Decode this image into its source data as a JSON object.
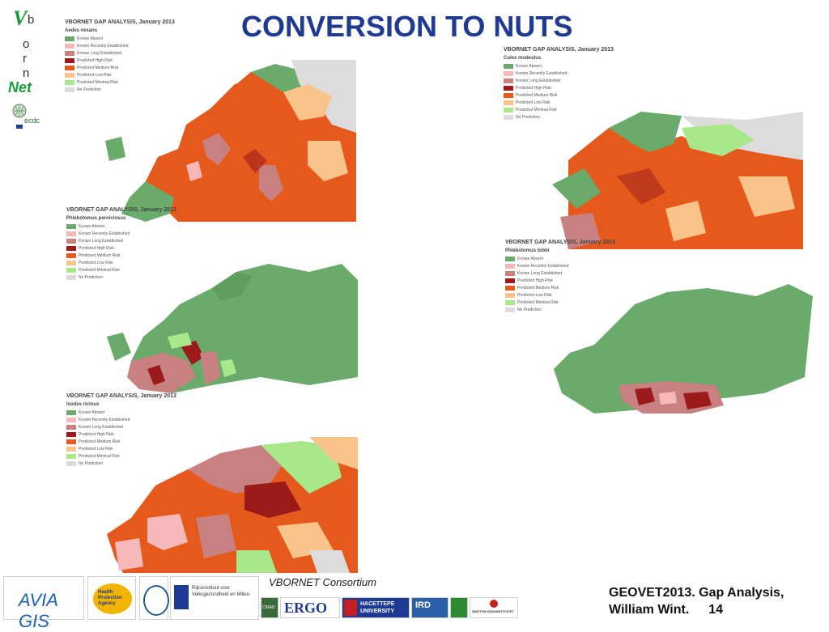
{
  "brand": {
    "v": "V",
    "letters": [
      "b",
      "o",
      "r",
      "n"
    ],
    "net": "Net",
    "ecdc_icon": "ecdc-logo-icon"
  },
  "title": "CONVERSION TO NUTS",
  "legend_colors": {
    "Known Absent": "#6aaa6a",
    "Known Recently Established": "#f6b8b8",
    "Known Long Established": "#c98080",
    "Predicted High Risk": "#9b1b1b",
    "Predicted Medium Risk": "#e55a1c",
    "Predicted Low Risk": "#f9c48a",
    "Predicted Minimal Risk": "#a8e88a",
    "No Prediction": "#dcdcdc"
  },
  "maps": [
    {
      "id": "aedes",
      "title": "VBORNET GAP ANALYSIS, January 2013",
      "species": "Aedes vexans",
      "legend": [
        "Known Absent",
        "Known Recently Established",
        "Known Long Established",
        "Predicted High Risk",
        "Predicted Medium Risk",
        "Predicted Low Risk",
        "Predicted Minimal Risk",
        "No Prediction"
      ]
    },
    {
      "id": "culex",
      "title": "VBORNET GAP ANALYSIS, January 2013",
      "species": "Culex modestus",
      "legend": [
        "Known Absent",
        "Known Recently Established",
        "Known Long Established",
        "Predicted High Risk",
        "Predicted Medium Risk",
        "Predicted Low Risk",
        "Predicted Minimal Risk",
        "No Prediction"
      ]
    },
    {
      "id": "pperniciosus",
      "title": "VBORNET GAP ANALYSIS, January 2013",
      "species": "Phlebotomus perniciosus",
      "legend": [
        "Known Absent",
        "Known Recently Established",
        "Known Long Established",
        "Predicted High Risk",
        "Predicted Medium Risk",
        "Predicted Low Risk",
        "Predicted Minimal Risk",
        "No Prediction"
      ]
    },
    {
      "id": "ptobbi",
      "title": "VBORNET GAP ANALYSIS, January 2013",
      "species": "Phlebotomus tobbi",
      "legend": [
        "Known Absent",
        "Known Recently Established",
        "Known Long Established",
        "Predicted High Risk",
        "Predicted Medium Risk",
        "Predicted Low Risk",
        "Predicted Minimal Risk",
        "No Prediction"
      ]
    },
    {
      "id": "ixodes",
      "title": "VBORNET GAP ANALYSIS, January 2013",
      "species": "Ixodes ricinus",
      "legend": [
        "Known Absent",
        "Known Recently Established",
        "Known Long Established",
        "Predicted High Risk",
        "Predicted Medium Risk",
        "Predicted Low Risk",
        "Predicted Minimal Risk",
        "No Prediction"
      ]
    }
  ],
  "footer": {
    "consortium": "VBORNET Consortium",
    "line1": "GEOVET2013. Gap Analysis,",
    "author": "William Wint.",
    "page": "14",
    "logos": [
      {
        "name": "avia-gis-logo",
        "text": "AVIA GIS"
      },
      {
        "name": "health-protection-agency-logo",
        "text": "Health Protection Agency"
      },
      {
        "name": "institute-seal-logo",
        "text": ""
      },
      {
        "name": "rivm-logo",
        "text": "Rijksinstituut voor Volksgezondheid en Milieu"
      },
      {
        "name": "cirad-logo",
        "text": "CIRAD"
      },
      {
        "name": "ergo-logo",
        "text": "ERGO"
      },
      {
        "name": "hacettepe-logo",
        "text": "HACETTEPE UNIVERSITY"
      },
      {
        "name": "ird-logo",
        "text": "IRD"
      },
      {
        "name": "green-institute-logo",
        "text": ""
      },
      {
        "name": "smittskydd-logo",
        "text": "SMITTSKYDDSINSTITUTET"
      }
    ]
  }
}
